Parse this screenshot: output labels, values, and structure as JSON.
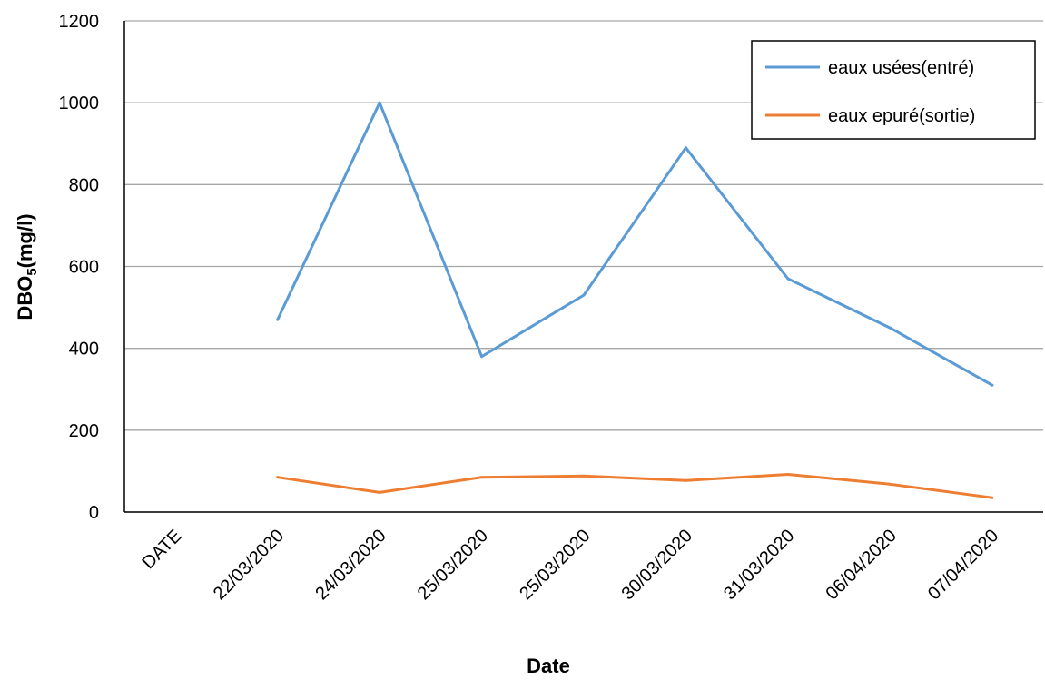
{
  "chart_data": {
    "type": "line",
    "title": "",
    "xlabel": "Date",
    "ylabel_main": "DBO",
    "ylabel_sub": "5",
    "ylabel_rest": "(mg/l)",
    "ylim": [
      0,
      1200
    ],
    "yticks": [
      0,
      200,
      400,
      600,
      800,
      1000,
      1200
    ],
    "grid": true,
    "legend_position": "top-right",
    "categories": [
      "DATE",
      "22/03/2020",
      "24/03/2020",
      "25/03/2020",
      "25/03/2020",
      "30/03/2020",
      "31/03/2020",
      "06/04/2020",
      "07/04/2020"
    ],
    "series": [
      {
        "name": "eaux usées(entré)",
        "color": "#5B9BD5",
        "values": [
          null,
          470,
          1000,
          380,
          530,
          890,
          570,
          450,
          310
        ]
      },
      {
        "name": "eaux epuré(sortie)",
        "color": "#ED7D31",
        "values": [
          null,
          85,
          48,
          85,
          88,
          77,
          92,
          68,
          35
        ]
      }
    ]
  }
}
